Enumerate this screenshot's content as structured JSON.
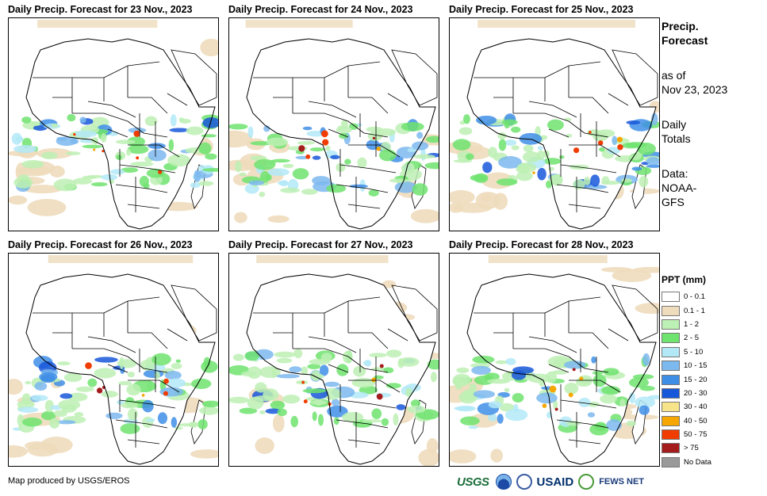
{
  "panels": [
    {
      "title": "Daily Precip. Forecast for 23 Nov., 2023"
    },
    {
      "title": "Daily Precip. Forecast for 24 Nov., 2023"
    },
    {
      "title": "Daily Precip. Forecast for 25 Nov., 2023"
    },
    {
      "title": "Daily Precip. Forecast for 26 Nov., 2023"
    },
    {
      "title": "Daily Precip. Forecast for 27 Nov., 2023"
    },
    {
      "title": "Daily Precip. Forecast for 28 Nov., 2023"
    }
  ],
  "info": {
    "heading_line1": "Precip.",
    "heading_line2": "Forecast",
    "asof_line1": "as of",
    "asof_line2": "Nov 23, 2023",
    "daily_line1": "Daily",
    "daily_line2": "Totals",
    "data_line1": "Data:",
    "data_line2": "NOAA-",
    "data_line3": "GFS"
  },
  "legend": {
    "title": "PPT (mm)",
    "items": [
      {
        "label": "0 - 0.1",
        "color": "#ffffff"
      },
      {
        "label": "0.1 - 1",
        "color": "#eedcbc"
      },
      {
        "label": "1 - 2",
        "color": "#bdf0b4"
      },
      {
        "label": "2 - 5",
        "color": "#6ee36e"
      },
      {
        "label": "5 - 10",
        "color": "#b3e9f7"
      },
      {
        "label": "10 - 15",
        "color": "#7cb9ee"
      },
      {
        "label": "15 - 20",
        "color": "#3f8ee6"
      },
      {
        "label": "20 - 30",
        "color": "#1757d9"
      },
      {
        "label": "30 - 40",
        "color": "#f7e38a"
      },
      {
        "label": "40 - 50",
        "color": "#f5a700"
      },
      {
        "label": "50 - 75",
        "color": "#f03c00"
      },
      {
        "label": "> 75",
        "color": "#a51c1c"
      },
      {
        "label": "No Data",
        "color": "#9a9a9a"
      }
    ]
  },
  "credit": "Map produced by USGS/EROS",
  "logos": {
    "usgs": "USGS",
    "usaid": "USAID",
    "fews": "FEWS NET"
  }
}
